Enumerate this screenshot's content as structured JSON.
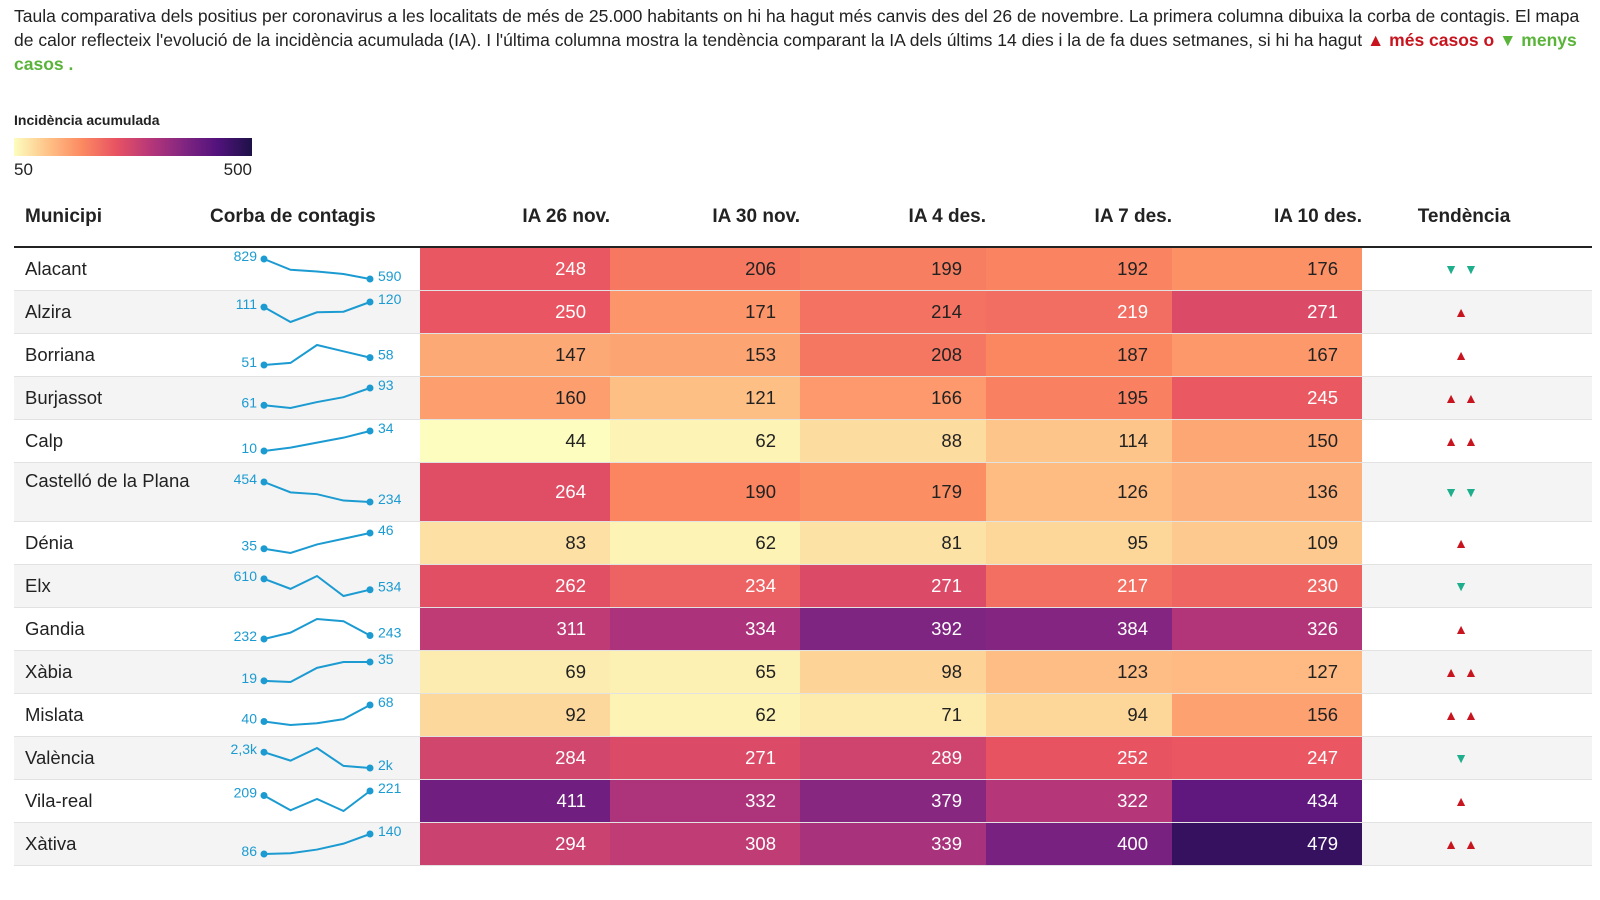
{
  "intro": {
    "text": "Taula comparativa dels positius per coronavirus a les localitats de més de 25.000 habitants on hi ha hagut més canvis des del 26 de novembre. La primera columna dibuixa la corba de contagis. El mapa de calor reflecteix l'evolució de la incidència acumulada (IA). I l'última columna mostra la tendència comparant la IA dels últims 14 dies i la de fa dues setmanes, si hi ha hagut",
    "up_label": "▲ més casos o",
    "down_label": "▼ menys casos .",
    "up_color": "#c8141e",
    "down_color": "#5ab43a"
  },
  "legend": {
    "title": "Incidència acumulada",
    "min": "50",
    "max": "500"
  },
  "columns": {
    "municipi": "Municipi",
    "corba": "Corba de contagis",
    "ia": [
      "IA 26 nov.",
      "IA 30 nov.",
      "IA 4 des.",
      "IA 7 des.",
      "IA 10 des."
    ],
    "tendencia": "Tendència"
  },
  "colors": {
    "spark": "#1b9bd1",
    "trend_up": "#c8141e",
    "trend_down": "#1fae8c"
  },
  "chart_data": {
    "type": "heatmap",
    "color_scale": "magma",
    "scale_range": [
      50,
      500
    ],
    "rows": [
      {
        "municipi": "Alacant",
        "spark_first": "829",
        "spark_last": "590",
        "spark": [
          829,
          700,
          680,
          650,
          590
        ],
        "ia": [
          248,
          206,
          199,
          192,
          176
        ],
        "trend": "▼▼",
        "trend_dir": "down"
      },
      {
        "municipi": "Alzira",
        "spark_first": "111",
        "spark_last": "120",
        "spark": [
          111,
          85,
          102,
          103,
          120
        ],
        "ia": [
          250,
          171,
          214,
          219,
          271
        ],
        "trend": "▲",
        "trend_dir": "up"
      },
      {
        "municipi": "Borriana",
        "spark_first": "51",
        "spark_last": "58",
        "spark": [
          51,
          53,
          70,
          64,
          58
        ],
        "ia": [
          147,
          153,
          208,
          187,
          167
        ],
        "trend": "▲",
        "trend_dir": "up"
      },
      {
        "municipi": "Burjassot",
        "spark_first": "61",
        "spark_last": "93",
        "spark": [
          61,
          56,
          67,
          76,
          93
        ],
        "ia": [
          160,
          121,
          166,
          195,
          245
        ],
        "trend": "▲▲",
        "trend_dir": "up"
      },
      {
        "municipi": "Calp",
        "spark_first": "10",
        "spark_last": "34",
        "spark": [
          10,
          14,
          20,
          26,
          34
        ],
        "ia": [
          44,
          62,
          88,
          114,
          150
        ],
        "trend": "▲▲",
        "trend_dir": "up"
      },
      {
        "municipi": "Castelló de la Plana",
        "spark_first": "454",
        "spark_last": "234",
        "spark": [
          454,
          340,
          320,
          250,
          234
        ],
        "ia": [
          264,
          190,
          179,
          126,
          136
        ],
        "trend": "▼▼",
        "trend_dir": "down"
      },
      {
        "municipi": "Dénia",
        "spark_first": "35",
        "spark_last": "46",
        "spark": [
          35,
          32,
          38,
          42,
          46
        ],
        "ia": [
          83,
          62,
          81,
          95,
          109
        ],
        "trend": "▲",
        "trend_dir": "up"
      },
      {
        "municipi": "Elx",
        "spark_first": "610",
        "spark_last": "534",
        "spark": [
          610,
          540,
          630,
          490,
          534
        ],
        "ia": [
          262,
          234,
          271,
          217,
          230
        ],
        "trend": "▼",
        "trend_dir": "down"
      },
      {
        "municipi": "Gandia",
        "spark_first": "232",
        "spark_last": "243",
        "spark": [
          232,
          252,
          295,
          288,
          243
        ],
        "ia": [
          311,
          334,
          392,
          384,
          326
        ],
        "trend": "▲",
        "trend_dir": "up"
      },
      {
        "municipi": "Xàbia",
        "spark_first": "19",
        "spark_last": "35",
        "spark": [
          19,
          18,
          30,
          35,
          35
        ],
        "ia": [
          69,
          65,
          98,
          123,
          127
        ],
        "trend": "▲▲",
        "trend_dir": "up"
      },
      {
        "municipi": "Mislata",
        "spark_first": "40",
        "spark_last": "68",
        "spark": [
          40,
          34,
          37,
          44,
          68
        ],
        "ia": [
          92,
          62,
          71,
          94,
          156
        ],
        "trend": "▲▲",
        "trend_dir": "up"
      },
      {
        "municipi": "València",
        "spark_first": "2,3k",
        "spark_last": "2k",
        "spark": [
          2300,
          2140,
          2380,
          2040,
          2000
        ],
        "ia": [
          284,
          271,
          289,
          252,
          247
        ],
        "trend": "▼",
        "trend_dir": "down"
      },
      {
        "municipi": "Vila-real",
        "spark_first": "209",
        "spark_last": "221",
        "spark": [
          209,
          170,
          200,
          168,
          221
        ],
        "ia": [
          411,
          332,
          379,
          322,
          434
        ],
        "trend": "▲",
        "trend_dir": "up"
      },
      {
        "municipi": "Xàtiva",
        "spark_first": "86",
        "spark_last": "140",
        "spark": [
          86,
          88,
          98,
          114,
          140
        ],
        "ia": [
          294,
          308,
          339,
          400,
          479
        ],
        "trend": "▲▲",
        "trend_dir": "up"
      }
    ]
  }
}
